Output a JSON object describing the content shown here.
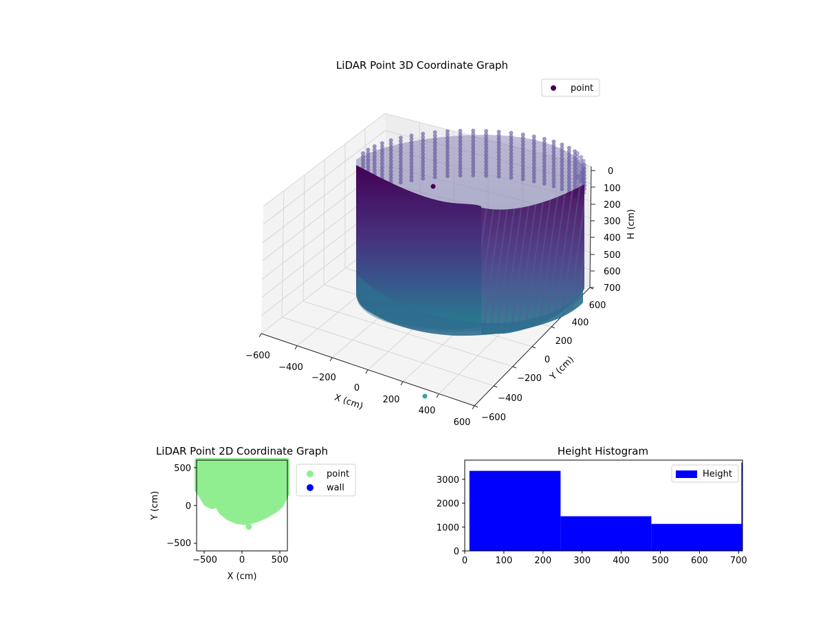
{
  "chart_data": [
    {
      "type": "scatter3d",
      "title": "LiDAR Point 3D Coordinate Graph",
      "xlabel": "X (cm)",
      "ylabel": "Y (cm)",
      "zlabel": "H (cm)",
      "xlim": [
        -600,
        600
      ],
      "ylim": [
        -600,
        600
      ],
      "zlim": [
        0,
        700
      ],
      "z_inverted": true,
      "xticks": [
        -600,
        -400,
        -200,
        0,
        200,
        400,
        600
      ],
      "yticks": [
        -600,
        -400,
        -200,
        0,
        200,
        400,
        600
      ],
      "zticks": [
        0,
        100,
        200,
        300,
        400,
        500,
        600,
        700
      ],
      "grid": true,
      "legend": {
        "placement": "top-right",
        "entries": [
          {
            "label": "point",
            "color": "#440154"
          }
        ]
      },
      "shape": {
        "kind": "cylindrical-wall",
        "radius": 560,
        "center": [
          0,
          0
        ],
        "h_range": [
          0,
          700
        ],
        "gap_angle_deg": [
          25,
          55
        ]
      },
      "colormap": "viridis",
      "outlier_points": [
        {
          "x": 420,
          "y": -600,
          "h": 700
        }
      ]
    },
    {
      "type": "scatter",
      "title": "LiDAR Point 2D Coordinate Graph",
      "xlabel": "X (cm)",
      "ylabel": "Y (cm)",
      "xlim": [
        -600,
        600
      ],
      "ylim": [
        -600,
        600
      ],
      "xticks": [
        -500,
        0,
        500
      ],
      "yticks": [
        -500,
        0,
        500
      ],
      "legend": {
        "placement": "outside-right",
        "entries": [
          {
            "label": "point",
            "color": "#90ee90"
          },
          {
            "label": "wall",
            "color": "#0000ff"
          }
        ]
      },
      "region_boundary": [
        [
          -600,
          600
        ],
        [
          -600,
          210
        ],
        [
          -540,
          120
        ],
        [
          -480,
          20
        ],
        [
          -400,
          -20
        ],
        [
          -330,
          0
        ],
        [
          -280,
          -90
        ],
        [
          -180,
          -170
        ],
        [
          -60,
          -220
        ],
        [
          60,
          -230
        ],
        [
          180,
          -200
        ],
        [
          300,
          -150
        ],
        [
          440,
          -70
        ],
        [
          520,
          0
        ],
        [
          600,
          160
        ],
        [
          600,
          600
        ]
      ],
      "outlier_points": [
        {
          "x": 90,
          "y": -280
        }
      ]
    },
    {
      "type": "bar",
      "title": "Height Histogram",
      "legend": {
        "placement": "top-right",
        "entries": [
          {
            "label": "Height",
            "color": "#0000ff"
          }
        ]
      },
      "xlim": [
        0,
        710
      ],
      "ylim": [
        0,
        3800
      ],
      "xticks": [
        0,
        100,
        200,
        300,
        400,
        500,
        600,
        700
      ],
      "yticks": [
        0,
        1000,
        2000,
        3000
      ],
      "bins": [
        {
          "from": 12,
          "to": 245,
          "count": 3350
        },
        {
          "from": 245,
          "to": 477,
          "count": 1450
        },
        {
          "from": 477,
          "to": 709,
          "count": 1130
        }
      ],
      "edge_bar": {
        "x": 709,
        "count": 3700
      }
    }
  ]
}
